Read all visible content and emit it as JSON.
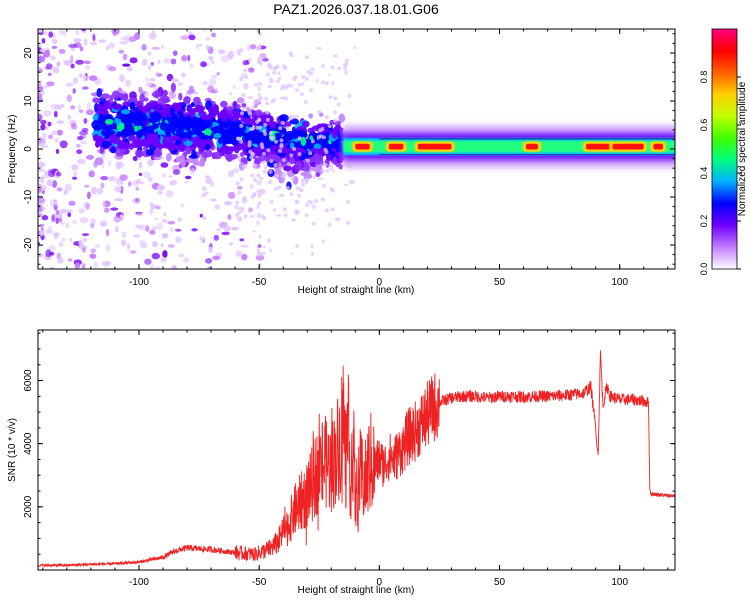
{
  "title": "PAZ1.2026.037.18.01.G06",
  "chart_data": [
    {
      "type": "heatmap",
      "xlabel": "Height of straight line (km)",
      "ylabel": "Frequency (Hz)",
      "xlim": [
        -142,
        123
      ],
      "ylim": [
        -25,
        25
      ],
      "xticks": [
        -100,
        -50,
        0,
        50,
        100
      ],
      "yticks": [
        -20,
        -10,
        0,
        10,
        20
      ],
      "colorbar": {
        "label": "Normalized spectral amplitude",
        "range": [
          0,
          1
        ],
        "ticks": [
          "0.0",
          "0.2",
          "0.4",
          "0.6",
          "0.8"
        ],
        "tick_values": [
          0.0,
          0.2,
          0.4,
          0.6,
          0.8
        ],
        "colormap": [
          "#ffffff",
          "#c27cff",
          "#7000ff",
          "#0000ff",
          "#00b0ff",
          "#00ff80",
          "#40ff00",
          "#c0ff00",
          "#ffd000",
          "#ff6000",
          "#ff0000",
          "#ff0080"
        ]
      },
      "ridge": {
        "description_free": true,
        "center_hz": [
          5,
          5,
          4,
          3,
          2,
          1,
          0.5,
          0.5,
          0.5
        ],
        "center_at_km": [
          -110,
          -90,
          -70,
          -50,
          -30,
          -15,
          0,
          50,
          120
        ]
      },
      "hot_segments_km": [
        [
          -10,
          -4
        ],
        [
          4,
          10
        ],
        [
          16,
          30
        ],
        [
          61,
          66
        ],
        [
          86,
          96
        ],
        [
          97,
          110
        ],
        [
          114,
          118
        ]
      ]
    },
    {
      "type": "line",
      "xlabel": "Height of straight line (km)",
      "ylabel": "SNR (10 * v/v)",
      "xlim": [
        -142,
        123
      ],
      "ylim": [
        0,
        7600
      ],
      "xticks": [
        -100,
        -50,
        0,
        50,
        100
      ],
      "yticks": [
        2000,
        4000,
        6000
      ],
      "series": [
        {
          "name": "SNR",
          "color": "#ee2222",
          "x": [
            -142,
            -130,
            -120,
            -110,
            -100,
            -90,
            -85,
            -80,
            -70,
            -60,
            -52,
            -48,
            -45,
            -42,
            -40,
            -38,
            -35,
            -32,
            -30,
            -28,
            -26,
            -24,
            -22,
            -20,
            -18,
            -16,
            -15,
            -14,
            -13,
            -12,
            -11,
            -10,
            -8,
            -6,
            -4,
            -2,
            0,
            2,
            4,
            6,
            8,
            10,
            12,
            15,
            18,
            20,
            22,
            25,
            28,
            30,
            35,
            40,
            45,
            50,
            55,
            60,
            65,
            70,
            75,
            80,
            85,
            88,
            90,
            91,
            92,
            93,
            94,
            95,
            96,
            100,
            105,
            110,
            112,
            112.5,
            113,
            115,
            120,
            123
          ],
          "y": [
            150,
            150,
            180,
            200,
            250,
            400,
            600,
            700,
            650,
            550,
            500,
            600,
            700,
            900,
            1200,
            1400,
            1900,
            2200,
            2400,
            2700,
            3100,
            3300,
            3400,
            3200,
            3700,
            4200,
            5000,
            3300,
            4500,
            2800,
            4200,
            2200,
            3000,
            2700,
            3400,
            3300,
            3500,
            3300,
            3600,
            3500,
            3700,
            3900,
            4200,
            4400,
            4700,
            4900,
            5100,
            5300,
            5400,
            5450,
            5500,
            5500,
            5450,
            5500,
            5500,
            5480,
            5500,
            5500,
            5520,
            5550,
            5600,
            5800,
            4500,
            3600,
            6900,
            5200,
            5600,
            5800,
            5500,
            5400,
            5400,
            5350,
            5300,
            2600,
            2400,
            2400,
            2350,
            2350
          ]
        }
      ]
    }
  ]
}
